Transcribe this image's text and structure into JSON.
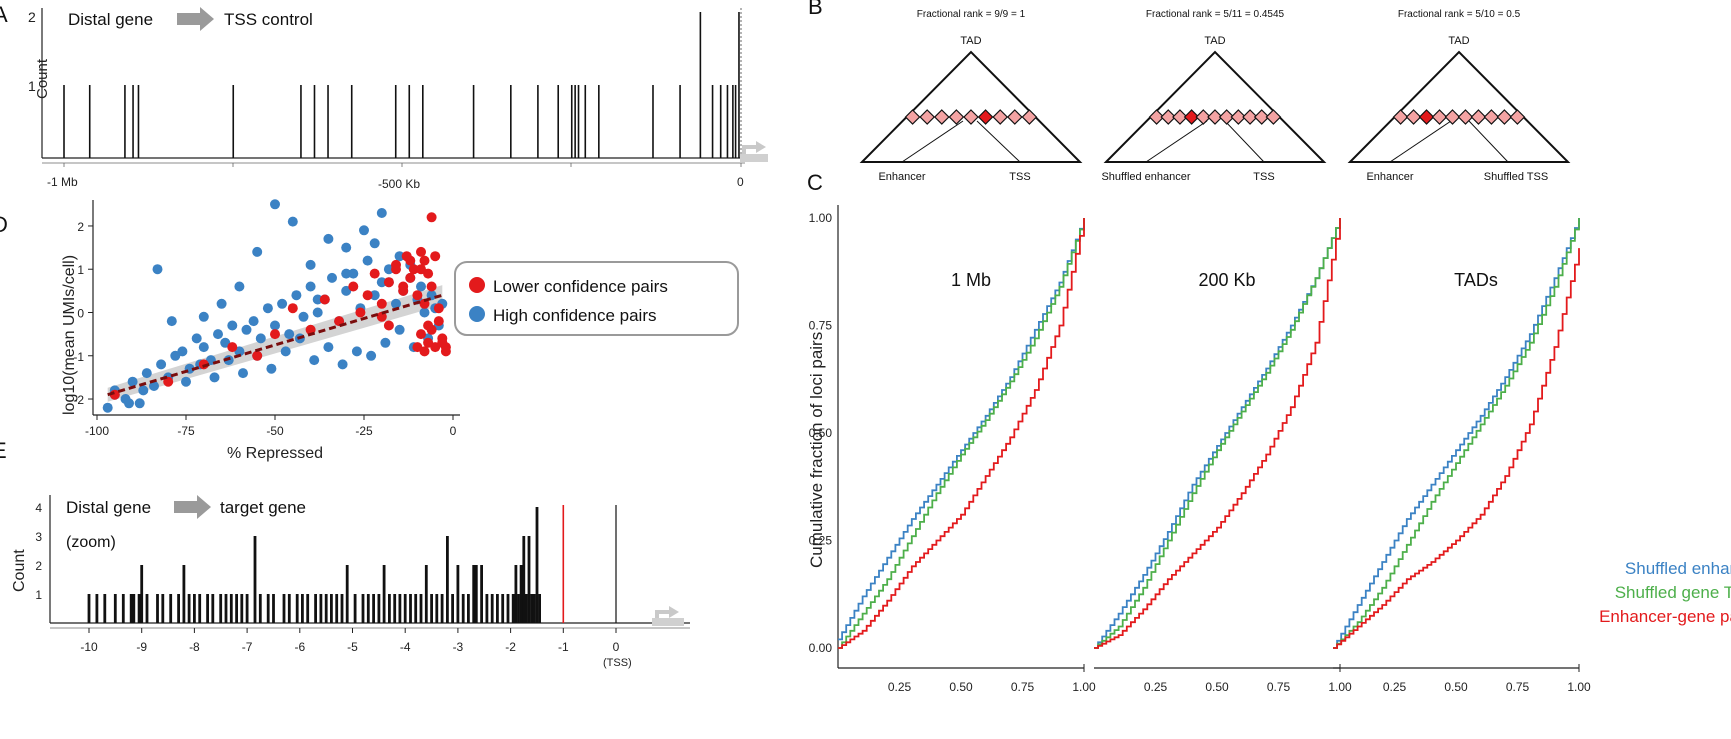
{
  "colors": {
    "red": "#e31a1c",
    "blue": "#3b82c4",
    "green": "#4daf4a",
    "gray_arrow": "#9a9a9a",
    "pink": "#f4a3a3",
    "dark_red_line": "#7a0d0d",
    "trend_band": "#cfcfcf"
  },
  "panels": {
    "A": {
      "letter": "A",
      "title_left": "Distal gene",
      "title_right": "TSS control",
      "ylabel": "Count",
      "yticks": [
        "1",
        "2"
      ],
      "xticks": [
        "-1 Mb",
        "-500 Kb",
        "0"
      ]
    },
    "B": {
      "letter": "B",
      "trees": [
        {
          "rank": "Fractional rank = 9/9 = 1",
          "top": "TAD",
          "left": "Enhancer",
          "right": "TSS"
        },
        {
          "rank": "Fractional rank = 5/11 = 0.4545",
          "top": "TAD",
          "left": "Shuffled enhancer",
          "right": "TSS"
        },
        {
          "rank": "Fractional rank = 5/10 = 0.5",
          "top": "TAD",
          "left": "Enhancer",
          "right": "Shuffled TSS"
        }
      ]
    },
    "C": {
      "letter": "C",
      "ylabel": "Cumulative fraction of loci pairs",
      "yticks": [
        "0.00",
        "0.25",
        "0.50",
        "0.75",
        "1.00"
      ],
      "xticks": [
        "0.25",
        "0.50",
        "0.75",
        "1.00"
      ],
      "facets": [
        "1 Mb",
        "200 Kb",
        "TADs"
      ],
      "legend": [
        "Shuffled enhancers",
        "Shuffled gene TSSs",
        "Enhancer-gene pairs"
      ]
    },
    "D": {
      "letter": "D",
      "xlabel": "% Repressed",
      "ylabel": "log10(mean UMIs/cell)",
      "xticks": [
        "-100",
        "-75",
        "-50",
        "-25",
        "0"
      ],
      "yticks": [
        "-2",
        "-1",
        "0",
        "1",
        "2"
      ],
      "legend": [
        "Lower confidence pairs",
        "High confidence pairs"
      ]
    },
    "E": {
      "letter": "E",
      "title_left": "Distal gene",
      "title_right": "target gene",
      "subtitle": "(zoom)",
      "ylabel": "Count",
      "yticks": [
        "1",
        "2",
        "3",
        "4"
      ],
      "xticks": [
        "-10",
        "-9",
        "-8",
        "-7",
        "-6",
        "-5",
        "-4",
        "-3",
        "-2",
        "-1",
        "0"
      ],
      "x_note": "(TSS)"
    }
  },
  "chart_data": [
    {
      "type": "bar",
      "panel": "A",
      "x_units": "kb",
      "xlim": [
        -1000,
        0
      ],
      "ylim": [
        0,
        2
      ],
      "x": [
        -1000,
        -962,
        -910,
        -898,
        -890,
        -750,
        -650,
        -630,
        -610,
        -575,
        -510,
        -490,
        -470,
        -395,
        -340,
        -300,
        -270,
        -250,
        -245,
        -240,
        -230,
        -210,
        -130,
        -90,
        -60,
        -42,
        -30,
        -20,
        -12,
        -8,
        -3
      ],
      "values": [
        1,
        1,
        1,
        1,
        1,
        1,
        1,
        1,
        1,
        1,
        1,
        1,
        1,
        1,
        1,
        1,
        1,
        1,
        1,
        1,
        1,
        1,
        1,
        1,
        2,
        1,
        1,
        1,
        1,
        1,
        2
      ]
    },
    {
      "type": "line",
      "panel": "C",
      "xlim": [
        0,
        1
      ],
      "ylim": [
        0,
        1
      ],
      "facets": [
        {
          "name": "1 Mb",
          "series": [
            {
              "name": "Shuffled enhancers",
              "x": [
                0,
                0.1,
                0.2,
                0.3,
                0.4,
                0.5,
                0.6,
                0.7,
                0.8,
                0.9,
                1
              ],
              "values": [
                0.02,
                0.12,
                0.21,
                0.3,
                0.38,
                0.46,
                0.54,
                0.63,
                0.74,
                0.85,
                1
              ]
            },
            {
              "name": "Shuffled gene TSSs",
              "x": [
                0,
                0.1,
                0.2,
                0.3,
                0.4,
                0.5,
                0.6,
                0.7,
                0.8,
                0.9,
                1
              ],
              "values": [
                0,
                0.08,
                0.16,
                0.26,
                0.36,
                0.45,
                0.53,
                0.62,
                0.72,
                0.84,
                1
              ]
            },
            {
              "name": "Enhancer-gene pairs",
              "x": [
                0,
                0.1,
                0.2,
                0.3,
                0.4,
                0.5,
                0.6,
                0.7,
                0.8,
                0.9,
                1
              ],
              "values": [
                0,
                0.04,
                0.11,
                0.19,
                0.25,
                0.31,
                0.4,
                0.49,
                0.6,
                0.75,
                1
              ]
            }
          ]
        },
        {
          "name": "200 Kb",
          "series": [
            {
              "name": "Shuffled enhancers",
              "x": [
                0,
                0.1,
                0.2,
                0.3,
                0.4,
                0.5,
                0.6,
                0.7,
                0.8,
                0.9,
                1
              ],
              "values": [
                0,
                0.08,
                0.17,
                0.27,
                0.38,
                0.47,
                0.56,
                0.65,
                0.75,
                0.86,
                1
              ]
            },
            {
              "name": "Shuffled gene TSSs",
              "x": [
                0,
                0.1,
                0.2,
                0.3,
                0.4,
                0.5,
                0.6,
                0.7,
                0.8,
                0.9,
                1
              ],
              "values": [
                0,
                0.05,
                0.14,
                0.25,
                0.36,
                0.46,
                0.55,
                0.64,
                0.74,
                0.86,
                1
              ]
            },
            {
              "name": "Enhancer-gene pairs",
              "x": [
                0,
                0.1,
                0.2,
                0.3,
                0.4,
                0.5,
                0.6,
                0.7,
                0.8,
                0.9,
                1
              ],
              "values": [
                0,
                0.03,
                0.09,
                0.16,
                0.22,
                0.28,
                0.36,
                0.45,
                0.56,
                0.71,
                1
              ]
            }
          ]
        },
        {
          "name": "TADs",
          "series": [
            {
              "name": "Shuffled enhancers",
              "x": [
                0,
                0.1,
                0.2,
                0.3,
                0.4,
                0.5,
                0.6,
                0.7,
                0.8,
                0.9,
                1
              ],
              "values": [
                0,
                0.1,
                0.2,
                0.3,
                0.38,
                0.46,
                0.54,
                0.63,
                0.73,
                0.86,
                1
              ]
            },
            {
              "name": "Shuffled gene TSSs",
              "x": [
                0,
                0.1,
                0.2,
                0.3,
                0.4,
                0.5,
                0.6,
                0.7,
                0.8,
                0.9,
                1
              ],
              "values": [
                0,
                0.06,
                0.14,
                0.24,
                0.34,
                0.43,
                0.52,
                0.61,
                0.71,
                0.84,
                1
              ]
            },
            {
              "name": "Enhancer-gene pairs",
              "x": [
                0,
                0.1,
                0.2,
                0.3,
                0.4,
                0.5,
                0.6,
                0.7,
                0.8,
                0.9,
                1
              ],
              "values": [
                0,
                0.05,
                0.1,
                0.16,
                0.2,
                0.25,
                0.31,
                0.4,
                0.52,
                0.7,
                0.93
              ]
            }
          ]
        }
      ]
    },
    {
      "type": "scatter",
      "panel": "D",
      "xlim": [
        -100,
        0
      ],
      "ylim": [
        -2.3,
        2.6
      ],
      "trend": {
        "x": [
          -97,
          -3
        ],
        "values": [
          -1.9,
          0.4
        ]
      },
      "series": [
        {
          "name": "High confidence pairs",
          "x": [
            -97,
            -95,
            -92,
            -90,
            -88,
            -86,
            -84,
            -82,
            -80,
            -78,
            -76,
            -74,
            -72,
            -70,
            -68,
            -66,
            -64,
            -62,
            -60,
            -58,
            -56,
            -54,
            -52,
            -50,
            -48,
            -46,
            -44,
            -42,
            -40,
            -38,
            -36,
            -34,
            -32,
            -30,
            -28,
            -26,
            -24,
            -22,
            -20,
            -18,
            -16,
            -14,
            -12,
            -10,
            -9,
            -8,
            -6,
            -5,
            -4,
            -3,
            -7,
            -11,
            -15,
            -19,
            -23,
            -27,
            -31,
            -35,
            -39,
            -43,
            -47,
            -51,
            -55,
            -59,
            -63,
            -67,
            -71,
            -75,
            -79,
            -83,
            -87,
            -91,
            -95,
            -30,
            -25,
            -20,
            -15,
            -35,
            -45,
            -50,
            -40,
            -60,
            -65,
            -70,
            -55,
            -30,
            -22,
            -18,
            -12,
            -38
          ],
          "values": [
            -2.2,
            -1.8,
            -2.0,
            -1.6,
            -2.1,
            -1.4,
            -1.7,
            -1.2,
            -1.5,
            -1.0,
            -0.9,
            -1.3,
            -0.6,
            -0.8,
            -1.1,
            -0.5,
            -0.7,
            -0.3,
            -0.9,
            -0.4,
            -0.2,
            -0.6,
            0.1,
            -0.3,
            0.2,
            -0.5,
            0.4,
            -0.1,
            0.6,
            0.0,
            0.3,
            0.8,
            -0.2,
            0.5,
            0.9,
            0.1,
            1.2,
            0.4,
            0.7,
            1.0,
            0.2,
            0.5,
            0.8,
            0.3,
            0.6,
            0.0,
            0.4,
            0.1,
            -0.3,
            0.2,
            -0.6,
            -0.8,
            -0.4,
            -0.7,
            -1.0,
            -0.9,
            -1.2,
            -0.8,
            -1.1,
            -0.6,
            -0.9,
            -1.3,
            -1.0,
            -1.4,
            -1.1,
            -1.5,
            -1.2,
            -1.6,
            -0.2,
            1.0,
            -1.8,
            -2.1,
            -1.9,
            1.5,
            1.9,
            2.3,
            1.3,
            1.7,
            2.1,
            2.5,
            1.1,
            0.6,
            0.2,
            -0.1,
            1.4,
            0.9,
            1.6,
            0.7,
            1.1,
            0.3
          ]
        },
        {
          "name": "Lower confidence pairs",
          "x": [
            -95,
            -80,
            -70,
            -62,
            -55,
            -50,
            -45,
            -40,
            -36,
            -32,
            -28,
            -26,
            -24,
            -22,
            -20,
            -18,
            -16,
            -14,
            -13,
            -12,
            -11,
            -10,
            -9,
            -8,
            -7,
            -6,
            -5,
            -4,
            -3,
            -2,
            -10,
            -9,
            -8,
            -7,
            -6,
            -5,
            -9,
            -8,
            -7,
            -12,
            -14,
            -16,
            -18,
            -20,
            -6,
            -4,
            -3,
            -2
          ],
          "values": [
            -1.9,
            -1.6,
            -1.2,
            -0.8,
            -1.0,
            -0.5,
            0.1,
            -0.4,
            0.3,
            -0.2,
            0.6,
            0.0,
            0.4,
            0.9,
            0.2,
            0.7,
            1.1,
            0.5,
            1.3,
            0.8,
            1.0,
            0.4,
            1.4,
            1.2,
            0.9,
            0.6,
            1.3,
            -0.2,
            -0.6,
            -0.9,
            -0.8,
            -0.5,
            -0.9,
            -0.7,
            -0.4,
            -0.8,
            1.0,
            0.2,
            -0.3,
            1.2,
            0.6,
            1.0,
            -0.3,
            -0.1,
            2.2,
            0.1,
            -0.7,
            -0.8
          ]
        }
      ],
      "xlabel": "% Repressed",
      "ylabel": "log10(mean UMIs/cell)",
      "legend_position": "right"
    },
    {
      "type": "bar",
      "panel": "E",
      "x_units": "relative position (TSS = 0)",
      "xlim": [
        -10.3,
        0.5
      ],
      "ylim": [
        0,
        4
      ],
      "marker_red_x": -1,
      "marker_black_x": 0,
      "x": [
        -10,
        -9.85,
        -9.7,
        -9.5,
        -9.35,
        -9.2,
        -9.15,
        -9.05,
        -9.0,
        -8.9,
        -8.7,
        -8.6,
        -8.45,
        -8.3,
        -8.2,
        -8.1,
        -8.0,
        -7.9,
        -7.75,
        -7.65,
        -7.5,
        -7.4,
        -7.3,
        -7.2,
        -7.1,
        -7.0,
        -6.85,
        -6.75,
        -6.6,
        -6.5,
        -6.3,
        -6.2,
        -6.05,
        -5.95,
        -5.85,
        -5.7,
        -5.6,
        -5.5,
        -5.4,
        -5.3,
        -5.2,
        -5.1,
        -4.95,
        -4.8,
        -4.7,
        -4.6,
        -4.5,
        -4.4,
        -4.3,
        -4.2,
        -4.1,
        -4.0,
        -3.9,
        -3.8,
        -3.7,
        -3.6,
        -3.5,
        -3.4,
        -3.3,
        -3.2,
        -3.1,
        -3.0,
        -2.9,
        -2.8,
        -2.7,
        -2.65,
        -2.55,
        -2.45,
        -2.35,
        -2.25,
        -2.15,
        -2.05,
        -1.95,
        -1.9,
        -1.85,
        -1.8,
        -1.75,
        -1.7,
        -1.65,
        -1.6,
        -1.55,
        -1.5,
        -1.45
      ],
      "values": [
        1,
        1,
        1,
        1,
        1,
        1,
        1,
        1,
        2,
        1,
        1,
        1,
        1,
        1,
        2,
        1,
        1,
        1,
        1,
        1,
        1,
        1,
        1,
        1,
        1,
        1,
        3,
        1,
        1,
        1,
        1,
        1,
        1,
        1,
        1,
        1,
        1,
        1,
        1,
        1,
        1,
        2,
        1,
        1,
        1,
        1,
        1,
        2,
        1,
        1,
        1,
        1,
        1,
        1,
        1,
        2,
        1,
        1,
        1,
        3,
        1,
        2,
        1,
        1,
        2,
        2,
        2,
        1,
        1,
        1,
        1,
        1,
        1,
        2,
        1,
        2,
        3,
        1,
        3,
        1,
        1,
        4,
        1
      ]
    }
  ]
}
